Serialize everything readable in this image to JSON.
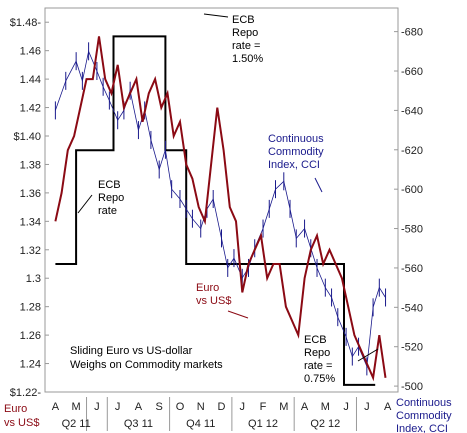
{
  "chart_data": {
    "type": "line",
    "title_lines": [
      "Sliding Euro vs US-dollar",
      "Weighs on Commodity markets"
    ],
    "x_categories": [
      "A",
      "M",
      "J",
      "J",
      "A",
      "S",
      "O",
      "N",
      "D",
      "J",
      "F",
      "M",
      "A",
      "M",
      "J",
      "J",
      "A"
    ],
    "quarters": [
      "Q2 11",
      "Q3 11",
      "Q4 11",
      "Q1 12",
      "Q2 12"
    ],
    "axis_label_left": [
      "Euro",
      "vs US$"
    ],
    "axis_label_right": [
      "Continuous",
      "Commodity",
      "Index, CCI"
    ],
    "y_left": {
      "range": [
        1.22,
        1.49
      ],
      "ticks": [
        "$1.22-",
        "1.24",
        "1.26",
        "1.28",
        "1.3",
        "1.32",
        "1.34",
        "1.36",
        "1.38",
        "$1.40",
        "1.42",
        "1.44",
        "1.46",
        "$1.48-"
      ],
      "tick_values": [
        1.22,
        1.24,
        1.26,
        1.28,
        1.3,
        1.32,
        1.34,
        1.36,
        1.38,
        1.4,
        1.42,
        1.44,
        1.46,
        1.48
      ]
    },
    "y_right": {
      "range": [
        497,
        692
      ],
      "ticks": [
        "-500",
        "-520",
        "-540",
        "-560",
        "-580",
        "-600",
        "-620",
        "-640",
        "-660",
        "-680"
      ],
      "tick_values": [
        500,
        520,
        540,
        560,
        580,
        600,
        620,
        640,
        660,
        680
      ]
    },
    "series": [
      {
        "name": "Euro vs US$",
        "axis": "left",
        "color": "#8b0a14",
        "x": [
          0,
          0.3,
          0.6,
          0.9,
          1.2,
          1.5,
          1.8,
          2.1,
          2.4,
          2.7,
          3.0,
          3.3,
          3.6,
          3.9,
          4.2,
          4.5,
          4.8,
          5.1,
          5.4,
          5.7,
          6.0,
          6.3,
          6.6,
          6.9,
          7.2,
          7.5,
          7.8,
          8.1,
          8.4,
          8.7,
          9.0,
          9.3,
          9.6,
          9.9,
          10.2,
          10.5,
          10.8,
          11.1,
          11.4,
          11.7,
          12.0,
          12.3,
          12.6,
          12.9,
          13.2,
          13.5,
          13.8,
          14.1,
          14.4,
          14.7,
          15.0,
          15.3,
          15.6,
          15.9
        ],
        "values": [
          1.34,
          1.36,
          1.39,
          1.4,
          1.42,
          1.44,
          1.44,
          1.47,
          1.44,
          1.43,
          1.45,
          1.42,
          1.43,
          1.44,
          1.41,
          1.43,
          1.44,
          1.42,
          1.43,
          1.4,
          1.41,
          1.38,
          1.37,
          1.35,
          1.34,
          1.38,
          1.42,
          1.39,
          1.35,
          1.34,
          1.29,
          1.31,
          1.32,
          1.33,
          1.3,
          1.31,
          1.31,
          1.28,
          1.27,
          1.26,
          1.3,
          1.32,
          1.33,
          1.31,
          1.32,
          1.31,
          1.3,
          1.28,
          1.26,
          1.25,
          1.24,
          1.23,
          1.26,
          1.23
        ]
      },
      {
        "name": "Continuous Commodity Index, CCI",
        "axis": "right",
        "color": "#1a1a8c",
        "x": [
          0,
          0.5,
          1.0,
          1.3,
          1.6,
          2.0,
          2.3,
          2.6,
          3.0,
          3.3,
          3.6,
          4.0,
          4.3,
          4.6,
          5.0,
          5.3,
          5.6,
          6.0,
          6.3,
          6.6,
          7.0,
          7.3,
          7.6,
          8.0,
          8.3,
          8.6,
          9.0,
          9.3,
          9.6,
          10.0,
          10.3,
          10.6,
          11.0,
          11.3,
          11.6,
          12.0,
          12.3,
          12.6,
          13.0,
          13.3,
          13.6,
          14.0,
          14.3,
          14.6,
          15.0,
          15.3,
          15.6,
          15.9
        ],
        "values": [
          640,
          655,
          665,
          655,
          670,
          660,
          652,
          645,
          635,
          640,
          650,
          630,
          640,
          625,
          610,
          620,
          600,
          595,
          590,
          585,
          580,
          590,
          595,
          575,
          560,
          565,
          555,
          560,
          570,
          580,
          590,
          600,
          604,
          590,
          575,
          580,
          570,
          560,
          550,
          545,
          535,
          525,
          515,
          520,
          510,
          540,
          550,
          545
        ]
      }
    ],
    "ecb_repo_rate": {
      "axis": "left",
      "color": "#000000",
      "x": [
        0,
        1,
        1,
        2.8,
        2.8,
        5.3,
        5.3,
        6.3,
        6.3,
        13.9,
        13.9,
        15.4
      ],
      "values": [
        1.31,
        1.31,
        1.39,
        1.39,
        1.47,
        1.47,
        1.39,
        1.39,
        1.31,
        1.31,
        1.225,
        1.225
      ]
    },
    "annotations": [
      {
        "id": "ecb-150",
        "lines": [
          "ECB",
          "Repo",
          "rate =",
          "1.50%"
        ]
      },
      {
        "id": "cci",
        "lines": [
          "Continuous",
          "Commodity",
          "Index, CCI"
        ]
      },
      {
        "id": "ecb-rate",
        "lines": [
          "ECB",
          "Repo",
          "rate"
        ]
      },
      {
        "id": "euro-label",
        "lines": [
          "Euro",
          "vs US$"
        ]
      },
      {
        "id": "title",
        "lines": [
          "Sliding Euro vs US-dollar",
          "Weighs on Commodity markets"
        ]
      },
      {
        "id": "ecb-075",
        "lines": [
          "ECB",
          "Repo",
          "rate =",
          "0.75%"
        ]
      }
    ],
    "colors": {
      "euro": "#8b0a14",
      "cci": "#1a1a8c",
      "repo": "#000000",
      "axis_label_euro": "#8b0a14",
      "axis_label_cci": "#1a1a8c"
    }
  }
}
